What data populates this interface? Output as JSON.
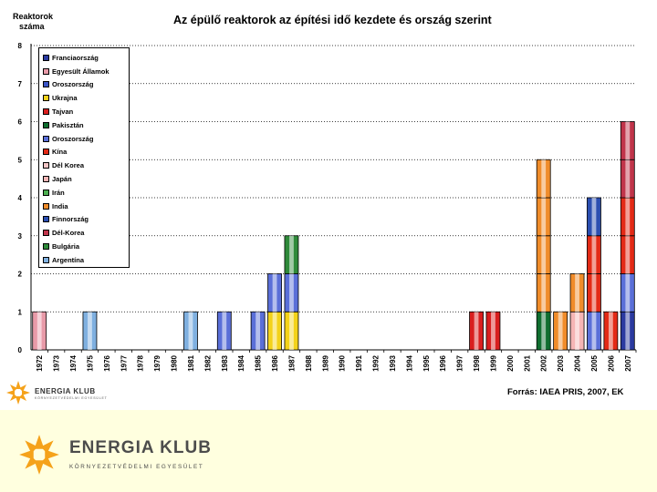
{
  "slide": {
    "ytitle_line1": "Reaktorok",
    "ytitle_line2": "száma",
    "source": "Forrás: IAEA PRIS, 2007, EK"
  },
  "chart_data": {
    "type": "bar",
    "stacked": true,
    "title": "Az épülő reaktorok az építési idő kezdete és ország szerint",
    "ylabel": "Reaktorok száma",
    "xlabel": "",
    "ylim": [
      0,
      8
    ],
    "yticks": [
      0,
      1,
      2,
      3,
      4,
      5,
      6,
      7,
      8
    ],
    "grid": "dotted",
    "legend_position": "top-left",
    "categories": [
      "1972",
      "1973",
      "1974",
      "1975",
      "1976",
      "1977",
      "1978",
      "1979",
      "1980",
      "1981",
      "1982",
      "1983",
      "1984",
      "1985",
      "1986",
      "1987",
      "1988",
      "1989",
      "1990",
      "1991",
      "1992",
      "1993",
      "1994",
      "1995",
      "1996",
      "1997",
      "1998",
      "1999",
      "2000",
      "2001",
      "2002",
      "2003",
      "2004",
      "2005",
      "2006",
      "2007"
    ],
    "series": [
      {
        "name": "Franciaország",
        "color": "#2b3aa0",
        "values": [
          0,
          0,
          0,
          0,
          0,
          0,
          0,
          0,
          0,
          0,
          0,
          0,
          0,
          0,
          0,
          0,
          0,
          0,
          0,
          0,
          0,
          0,
          0,
          0,
          0,
          0,
          0,
          0,
          0,
          0,
          0,
          0,
          0,
          0,
          0,
          1
        ]
      },
      {
        "name": "Egyesült Államok",
        "color": "#e89aa8",
        "values": [
          1,
          0,
          0,
          0,
          0,
          0,
          0,
          0,
          0,
          0,
          0,
          0,
          0,
          0,
          0,
          0,
          0,
          0,
          0,
          0,
          0,
          0,
          0,
          0,
          0,
          0,
          0,
          0,
          0,
          0,
          0,
          0,
          0,
          0,
          0,
          0
        ]
      },
      {
        "name": "Oroszország",
        "color": "#3b55c6",
        "values": [
          0,
          0,
          0,
          0,
          0,
          0,
          0,
          0,
          0,
          0,
          0,
          0,
          0,
          0,
          0,
          0,
          0,
          0,
          0,
          0,
          0,
          0,
          0,
          0,
          0,
          0,
          0,
          0,
          0,
          0,
          0,
          0,
          0,
          0,
          0,
          0
        ]
      },
      {
        "name": "Ukrajna",
        "color": "#f3d21a",
        "values": [
          0,
          0,
          0,
          0,
          0,
          0,
          0,
          0,
          0,
          0,
          0,
          0,
          0,
          0,
          1,
          1,
          0,
          0,
          0,
          0,
          0,
          0,
          0,
          0,
          0,
          0,
          0,
          0,
          0,
          0,
          0,
          0,
          0,
          0,
          0,
          0
        ]
      },
      {
        "name": "Tajvan",
        "color": "#d91e1e",
        "values": [
          0,
          0,
          0,
          0,
          0,
          0,
          0,
          0,
          0,
          0,
          0,
          0,
          0,
          0,
          0,
          0,
          0,
          0,
          0,
          0,
          0,
          0,
          0,
          0,
          0,
          0,
          1,
          1,
          0,
          0,
          0,
          0,
          0,
          0,
          0,
          0
        ]
      },
      {
        "name": "Pakisztán",
        "color": "#0f6e2f",
        "values": [
          0,
          0,
          0,
          0,
          0,
          0,
          0,
          0,
          0,
          0,
          0,
          0,
          0,
          0,
          0,
          0,
          0,
          0,
          0,
          0,
          0,
          0,
          0,
          0,
          0,
          0,
          0,
          0,
          0,
          0,
          1,
          0,
          0,
          0,
          0,
          0
        ]
      },
      {
        "name": "Oroszország",
        "color": "#5a6fd8",
        "values": [
          0,
          0,
          0,
          0,
          0,
          0,
          0,
          0,
          0,
          0,
          0,
          1,
          0,
          1,
          1,
          1,
          0,
          0,
          0,
          0,
          0,
          0,
          0,
          0,
          0,
          0,
          0,
          0,
          0,
          0,
          0,
          0,
          0,
          1,
          0,
          1
        ]
      },
      {
        "name": "Kína",
        "color": "#e32a16",
        "values": [
          0,
          0,
          0,
          0,
          0,
          0,
          0,
          0,
          0,
          0,
          0,
          0,
          0,
          0,
          0,
          0,
          0,
          0,
          0,
          0,
          0,
          0,
          0,
          0,
          0,
          0,
          0,
          0,
          0,
          0,
          0,
          0,
          0,
          2,
          1,
          2
        ]
      },
      {
        "name": "Dél Korea",
        "color": "#f4c6c6",
        "values": [
          0,
          0,
          0,
          0,
          0,
          0,
          0,
          0,
          0,
          0,
          0,
          0,
          0,
          0,
          0,
          0,
          0,
          0,
          0,
          0,
          0,
          0,
          0,
          0,
          0,
          0,
          0,
          0,
          0,
          0,
          0,
          0,
          0,
          0,
          0,
          0
        ]
      },
      {
        "name": "Japán",
        "color": "#f5b5b5",
        "values": [
          0,
          0,
          0,
          0,
          0,
          0,
          0,
          0,
          0,
          0,
          0,
          0,
          0,
          0,
          0,
          0,
          0,
          0,
          0,
          0,
          0,
          0,
          0,
          0,
          0,
          0,
          0,
          0,
          0,
          0,
          0,
          0,
          1,
          0,
          0,
          0
        ]
      },
      {
        "name": "Irán",
        "color": "#4caf50",
        "values": [
          0,
          0,
          0,
          0,
          0,
          0,
          0,
          0,
          0,
          0,
          0,
          0,
          0,
          0,
          0,
          0,
          0,
          0,
          0,
          0,
          0,
          0,
          0,
          0,
          0,
          0,
          0,
          0,
          0,
          0,
          0,
          0,
          0,
          0,
          0,
          0
        ]
      },
      {
        "name": "India",
        "color": "#f08c2a",
        "values": [
          0,
          0,
          0,
          0,
          0,
          0,
          0,
          0,
          0,
          0,
          0,
          0,
          0,
          0,
          0,
          0,
          0,
          0,
          0,
          0,
          0,
          0,
          0,
          0,
          0,
          0,
          0,
          0,
          0,
          0,
          4,
          1,
          1,
          0,
          0,
          0
        ]
      },
      {
        "name": "Finnország",
        "color": "#2b4eb0",
        "values": [
          0,
          0,
          0,
          0,
          0,
          0,
          0,
          0,
          0,
          0,
          0,
          0,
          0,
          0,
          0,
          0,
          0,
          0,
          0,
          0,
          0,
          0,
          0,
          0,
          0,
          0,
          0,
          0,
          0,
          0,
          0,
          0,
          0,
          1,
          0,
          0
        ]
      },
      {
        "name": "Dél-Korea",
        "color": "#c0344a",
        "values": [
          0,
          0,
          0,
          0,
          0,
          0,
          0,
          0,
          0,
          0,
          0,
          0,
          0,
          0,
          0,
          0,
          0,
          0,
          0,
          0,
          0,
          0,
          0,
          0,
          0,
          0,
          0,
          0,
          0,
          0,
          0,
          0,
          0,
          0,
          0,
          2
        ]
      },
      {
        "name": "Bulgária",
        "color": "#2f8a3a",
        "values": [
          0,
          0,
          0,
          0,
          0,
          0,
          0,
          0,
          0,
          0,
          0,
          0,
          0,
          0,
          0,
          1,
          0,
          0,
          0,
          0,
          0,
          0,
          0,
          0,
          0,
          0,
          0,
          0,
          0,
          0,
          0,
          0,
          0,
          0,
          0,
          0
        ]
      },
      {
        "name": "Argentína",
        "color": "#7fb0e0",
        "values": [
          0,
          0,
          0,
          1,
          0,
          0,
          0,
          0,
          0,
          1,
          0,
          0,
          0,
          0,
          0,
          0,
          0,
          0,
          0,
          0,
          0,
          0,
          0,
          0,
          0,
          0,
          0,
          0,
          0,
          0,
          0,
          0,
          0,
          0,
          0,
          0
        ]
      }
    ]
  },
  "logo_small": {
    "wordmark": "ENERGIA KLUB",
    "tagline": "KÖRNYEZETVÉDELMI EGYESÜLET"
  },
  "logo_big": {
    "wordmark": "ENERGIA KLUB",
    "tagline": "KÖRNYEZETVÉDELMI EGYESÜLET"
  },
  "colors": {
    "logo_orange": "#f5a21a",
    "footer_bg": "#ffffdf"
  }
}
